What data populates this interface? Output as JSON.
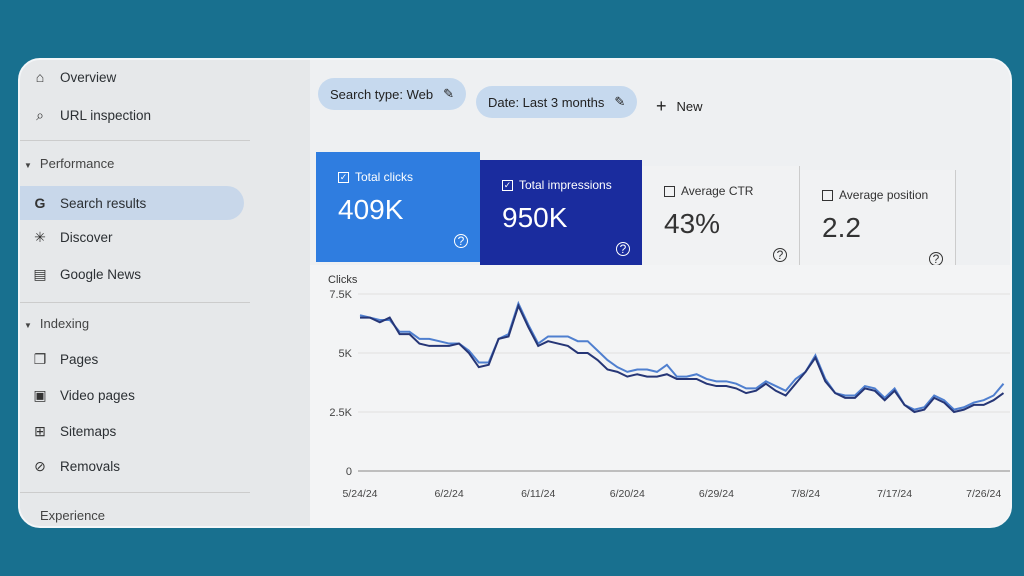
{
  "sidebar": {
    "items": [
      {
        "label": "Overview",
        "icon": "home-icon"
      },
      {
        "label": "URL inspection",
        "icon": "search-icon"
      }
    ],
    "performance": {
      "label": "Performance",
      "items": [
        {
          "label": "Search results",
          "icon": "google-g-icon"
        },
        {
          "label": "Discover",
          "icon": "asterisk-icon"
        },
        {
          "label": "Google News",
          "icon": "news-icon"
        }
      ]
    },
    "indexing": {
      "label": "Indexing",
      "items": [
        {
          "label": "Pages",
          "icon": "pages-icon"
        },
        {
          "label": "Video pages",
          "icon": "video-icon"
        },
        {
          "label": "Sitemaps",
          "icon": "sitemap-icon"
        },
        {
          "label": "Removals",
          "icon": "removals-icon"
        }
      ]
    },
    "experience": {
      "label": "Experience"
    }
  },
  "filters": {
    "search_type": "Search type: Web",
    "date": "Date: Last 3 months",
    "new": "New"
  },
  "metrics": [
    {
      "label": "Total clicks",
      "value": "409K",
      "checked": true
    },
    {
      "label": "Total impressions",
      "value": "950K",
      "checked": true
    },
    {
      "label": "Average CTR",
      "value": "43%",
      "checked": false
    },
    {
      "label": "Average position",
      "value": "2.2",
      "checked": false
    }
  ],
  "colors": {
    "clicks_card": "#2f7de0",
    "impressions_card": "#1a2c9e",
    "clicks_line": "#263676",
    "impressions_line": "#4f7fcf"
  },
  "chart_data": {
    "type": "line",
    "ylabel": "Clicks",
    "ylim": [
      0,
      7500
    ],
    "yticks": [
      "0",
      "2.5K",
      "5K",
      "7.5K"
    ],
    "xticks": [
      "5/24/24",
      "6/2/24",
      "6/11/24",
      "6/20/24",
      "6/29/24",
      "7/8/24",
      "7/17/24",
      "7/26/24"
    ],
    "series": [
      {
        "name": "Clicks",
        "values": [
          6500,
          6500,
          6300,
          6500,
          5800,
          5800,
          5400,
          5300,
          5300,
          5300,
          5400,
          5000,
          4400,
          4500,
          5600,
          5700,
          7000,
          6100,
          5300,
          5500,
          5400,
          5300,
          5000,
          5000,
          4700,
          4300,
          4200,
          4000,
          4100,
          4000,
          4000,
          4100,
          3900,
          3900,
          3900,
          3700,
          3600,
          3600,
          3500,
          3300,
          3400,
          3700,
          3400,
          3200,
          3700,
          4200,
          4800,
          3800,
          3300,
          3100,
          3100,
          3500,
          3400,
          3000,
          3400,
          2800,
          2500,
          2600,
          3100,
          2900,
          2500,
          2600,
          2800,
          2800,
          3000,
          3300
        ]
      },
      {
        "name": "Impressions",
        "values": [
          6600,
          6500,
          6400,
          6400,
          5900,
          5900,
          5600,
          5600,
          5500,
          5400,
          5400,
          5100,
          4600,
          4600,
          5600,
          5800,
          7100,
          6200,
          5400,
          5700,
          5700,
          5700,
          5500,
          5500,
          5100,
          4700,
          4400,
          4200,
          4300,
          4300,
          4200,
          4500,
          4000,
          4000,
          4100,
          3900,
          3800,
          3800,
          3700,
          3500,
          3500,
          3800,
          3600,
          3400,
          3900,
          4200,
          4900,
          3900,
          3300,
          3200,
          3200,
          3600,
          3500,
          3100,
          3500,
          2800,
          2600,
          2700,
          3200,
          3000,
          2600,
          2700,
          2900,
          3000,
          3200,
          3700
        ]
      }
    ]
  }
}
